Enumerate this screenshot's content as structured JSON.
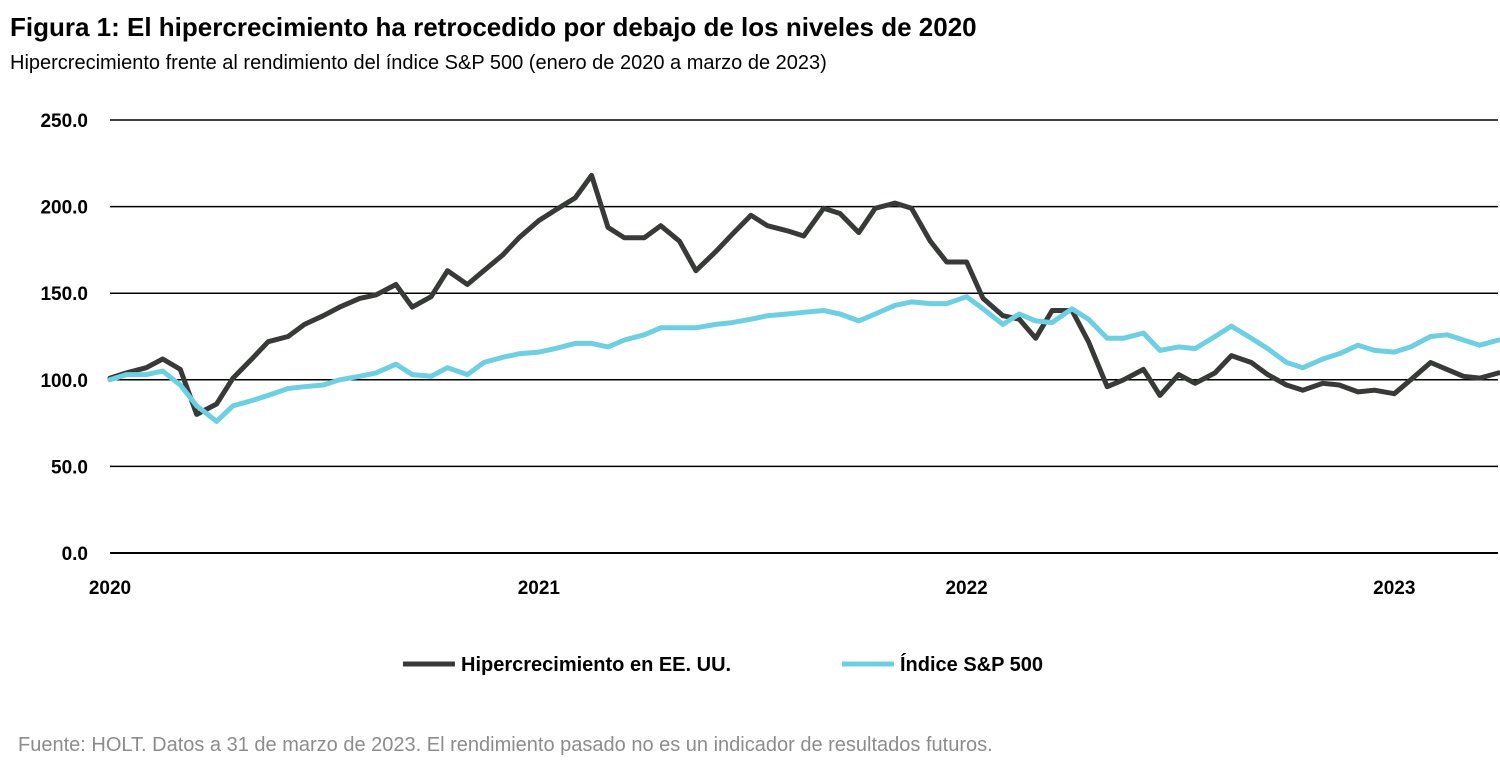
{
  "title": "Figura 1: El hipercrecimiento ha retrocedido por debajo de los niveles de 2020",
  "subtitle": "Hipercrecimiento frente al rendimiento del índice S&P 500 (enero de 2020 a marzo de 2023)",
  "footer": "Fuente: HOLT. Datos a 31 de marzo de 2023. El rendimiento pasado no es un indicador de resultados futuros.",
  "chart_data": {
    "type": "line",
    "title": "Figura 1: El hipercrecimiento ha retrocedido por debajo de los niveles de 2020",
    "subtitle": "Hipercrecimiento frente al rendimiento del índice S&P 500 (enero de 2020 a marzo de 2023)",
    "xlabel": "",
    "ylabel": "",
    "ylim": [
      0,
      250
    ],
    "xlim": [
      "2020-01-01",
      "2023-03-31"
    ],
    "yticks": [
      "0.0",
      "50.0",
      "100.0",
      "150.0",
      "200.0",
      "250.0"
    ],
    "xticks": [
      "2020",
      "2021",
      "2022",
      "2023"
    ],
    "grid": "horizontal",
    "legend": "bottom",
    "x": [
      "2020-01-01",
      "2020-01-15",
      "2020-02-01",
      "2020-02-15",
      "2020-03-01",
      "2020-03-15",
      "2020-04-01",
      "2020-04-15",
      "2020-05-01",
      "2020-05-15",
      "2020-06-01",
      "2020-06-15",
      "2020-07-01",
      "2020-07-15",
      "2020-08-01",
      "2020-08-15",
      "2020-09-01",
      "2020-09-15",
      "2020-10-01",
      "2020-10-15",
      "2020-11-01",
      "2020-11-15",
      "2020-12-01",
      "2020-12-15",
      "2021-01-01",
      "2021-01-15",
      "2021-02-01",
      "2021-02-15",
      "2021-03-01",
      "2021-03-15",
      "2021-04-01",
      "2021-04-15",
      "2021-05-01",
      "2021-05-15",
      "2021-06-01",
      "2021-06-15",
      "2021-07-01",
      "2021-07-15",
      "2021-08-01",
      "2021-08-15",
      "2021-09-01",
      "2021-09-15",
      "2021-10-01",
      "2021-10-15",
      "2021-11-01",
      "2021-11-15",
      "2021-12-01",
      "2021-12-15",
      "2022-01-01",
      "2022-01-15",
      "2022-02-01",
      "2022-02-15",
      "2022-03-01",
      "2022-03-15",
      "2022-04-01",
      "2022-04-15",
      "2022-05-01",
      "2022-05-15",
      "2022-06-01",
      "2022-06-15",
      "2022-07-01",
      "2022-07-15",
      "2022-08-01",
      "2022-08-15",
      "2022-09-01",
      "2022-09-15",
      "2022-10-01",
      "2022-10-15",
      "2022-11-01",
      "2022-11-15",
      "2022-12-01",
      "2022-12-15",
      "2023-01-01",
      "2023-01-15",
      "2023-02-01",
      "2023-02-15",
      "2023-03-01",
      "2023-03-15",
      "2023-03-31"
    ],
    "series": [
      {
        "name": "Hipercrecimiento en EE. UU.",
        "color": "#383a38",
        "values": [
          101,
          104,
          107,
          112,
          106,
          80,
          86,
          101,
          112,
          122,
          125,
          132,
          137,
          142,
          147,
          149,
          155,
          142,
          148,
          163,
          155,
          163,
          172,
          182,
          192,
          198,
          205,
          218,
          188,
          182,
          182,
          189,
          180,
          163,
          174,
          184,
          195,
          189,
          186,
          183,
          199,
          196,
          185,
          199,
          202,
          199,
          180,
          168,
          168,
          147,
          137,
          135,
          124,
          140,
          140,
          122,
          96,
          100,
          106,
          91,
          103,
          98,
          104,
          114,
          110,
          103,
          97,
          94,
          98,
          97,
          93,
          94,
          92,
          100,
          110,
          106,
          102,
          101,
          104
        ]
      },
      {
        "name": "Índice S&P 500",
        "color": "#6fcfe2",
        "values": [
          100,
          103,
          103,
          105,
          97,
          85,
          76,
          85,
          88,
          91,
          95,
          96,
          97,
          100,
          102,
          104,
          109,
          103,
          102,
          107,
          103,
          110,
          113,
          115,
          116,
          118,
          121,
          121,
          119,
          123,
          126,
          130,
          130,
          130,
          132,
          133,
          135,
          137,
          138,
          139,
          140,
          138,
          134,
          138,
          143,
          145,
          144,
          144,
          148,
          141,
          132,
          138,
          134,
          133,
          141,
          135,
          124,
          124,
          127,
          117,
          119,
          118,
          125,
          131,
          124,
          118,
          110,
          107,
          112,
          115,
          120,
          117,
          116,
          119,
          125,
          126,
          123,
          120,
          123
        ]
      }
    ]
  }
}
